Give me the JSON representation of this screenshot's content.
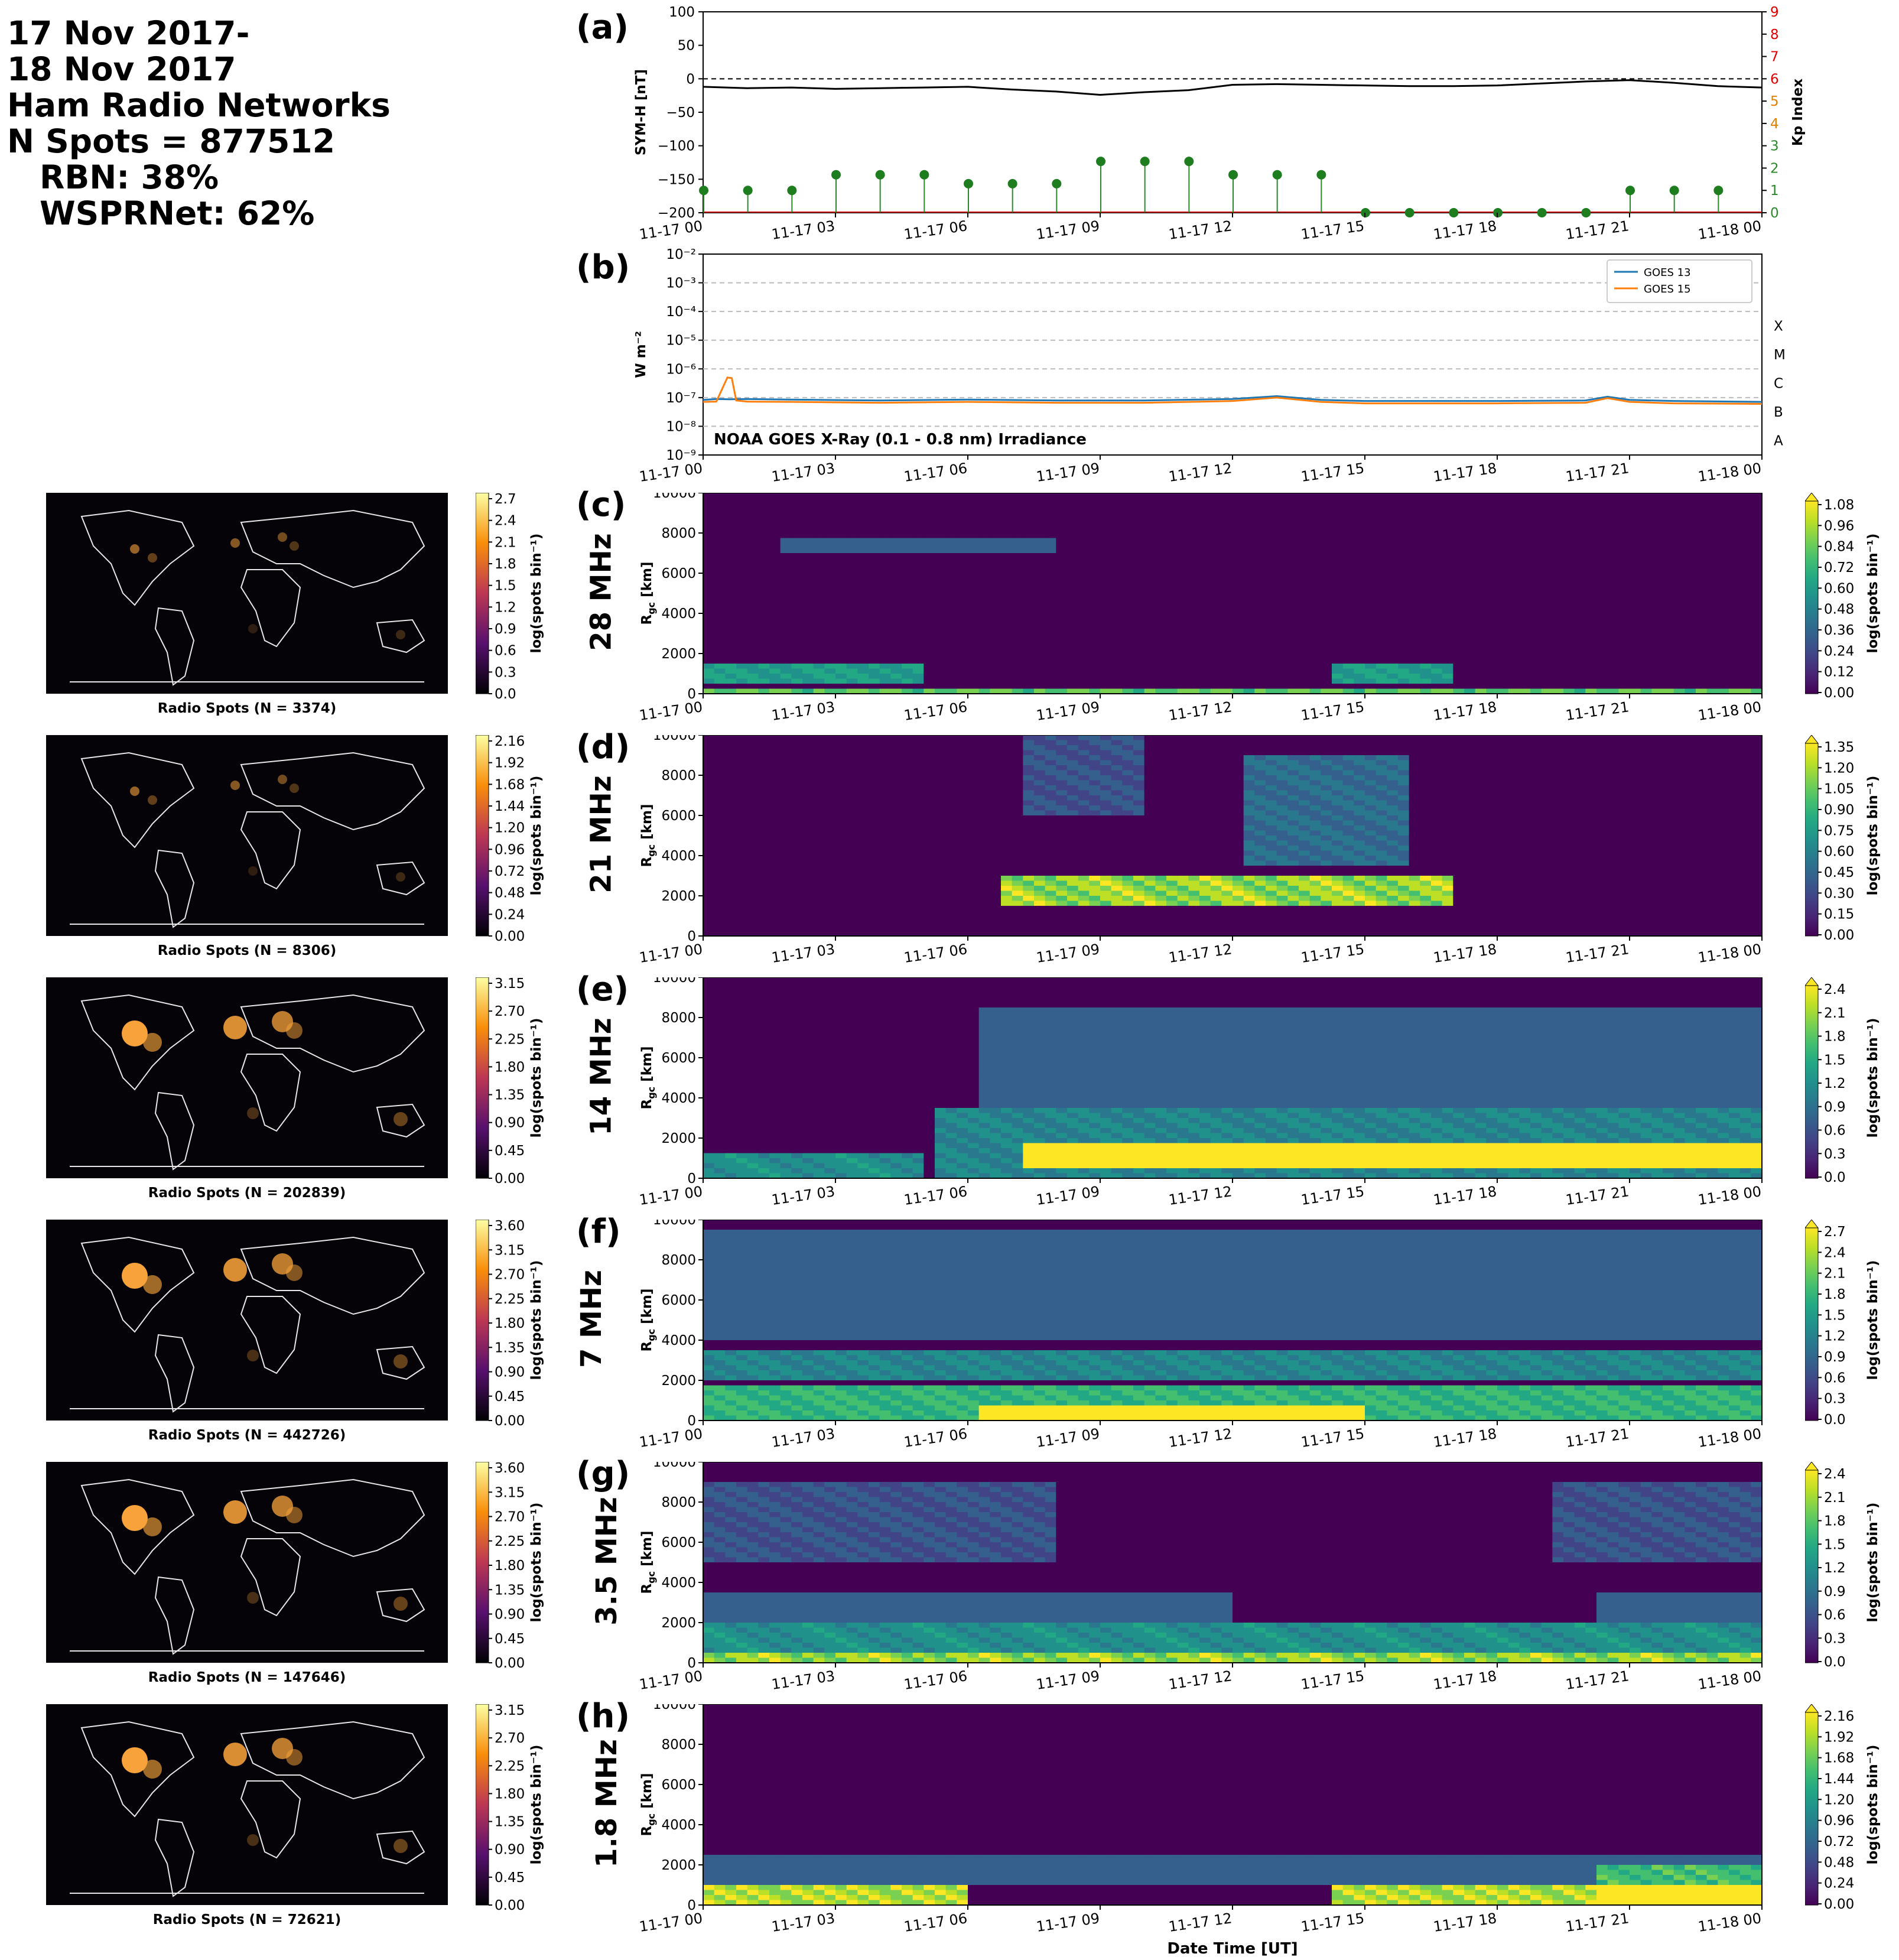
{
  "header": {
    "line1": "17 Nov 2017-",
    "line2": "18 Nov 2017",
    "line3": "Ham Radio Networks",
    "line4": "N Spots = 877512",
    "line5": "RBN: 38%",
    "line6": "WSPRNet: 62%"
  },
  "time_ticks": [
    "11-17 00",
    "11-17 03",
    "11-17 06",
    "11-17 09",
    "11-17 12",
    "11-17 15",
    "11-17 18",
    "11-17 21",
    "11-18 00"
  ],
  "xlabel_bottom": "Date Time [UT]",
  "panel_a": {
    "letter": "(a)",
    "ylabel_left": "SYM-H [nT]",
    "ylabel_right": "Kp Index",
    "left_ticks": [
      "100",
      "50",
      "0",
      "−50",
      "−100",
      "−150",
      "−200"
    ],
    "right_ticks": [
      "9",
      "8",
      "7",
      "6",
      "5",
      "4",
      "3",
      "2",
      "1",
      "0"
    ],
    "right_tick_colors": [
      "#e00000",
      "#e00000",
      "#e00000",
      "#e00000",
      "#e08000",
      "#e08000",
      "#2a8a2a",
      "#2a8a2a",
      "#2a8a2a",
      "#2a8a2a"
    ]
  },
  "panel_b": {
    "letter": "(b)",
    "ylabel": "W m⁻²",
    "y_ticks": [
      "10⁻²",
      "10⁻³",
      "10⁻⁴",
      "10⁻⁵",
      "10⁻⁶",
      "10⁻⁷",
      "10⁻⁸",
      "10⁻⁹"
    ],
    "class_labels": [
      "X",
      "M",
      "C",
      "B",
      "A"
    ],
    "annotation": "NOAA GOES X-Ray (0.1 - 0.8 nm) Irradiance",
    "legend": [
      "GOES 13",
      "GOES 15"
    ]
  },
  "bands": [
    {
      "letter": "(c)",
      "label": "28 MHz",
      "caption": "Radio Spots (N = 3374)",
      "map_ticks": [
        "2.7",
        "2.4",
        "2.1",
        "1.8",
        "1.5",
        "1.2",
        "0.9",
        "0.6",
        "0.3",
        "0.0"
      ],
      "cb_ticks": [
        "1.08",
        "0.96",
        "0.84",
        "0.72",
        "0.60",
        "0.48",
        "0.36",
        "0.24",
        "0.12",
        "0.00"
      ]
    },
    {
      "letter": "(d)",
      "label": "21 MHz",
      "caption": "Radio Spots (N = 8306)",
      "map_ticks": [
        "2.16",
        "1.92",
        "1.68",
        "1.44",
        "1.20",
        "0.96",
        "0.72",
        "0.48",
        "0.24",
        "0.00"
      ],
      "cb_ticks": [
        "1.35",
        "1.20",
        "1.05",
        "0.90",
        "0.75",
        "0.60",
        "0.45",
        "0.30",
        "0.15",
        "0.00"
      ]
    },
    {
      "letter": "(e)",
      "label": "14 MHz",
      "caption": "Radio Spots (N = 202839)",
      "map_ticks": [
        "3.15",
        "2.70",
        "2.25",
        "1.80",
        "1.35",
        "0.90",
        "0.45",
        "0.00"
      ],
      "cb_ticks": [
        "2.4",
        "2.1",
        "1.8",
        "1.5",
        "1.2",
        "0.9",
        "0.6",
        "0.3",
        "0.0"
      ]
    },
    {
      "letter": "(f)",
      "label": "7 MHz",
      "caption": "Radio Spots (N = 442726)",
      "map_ticks": [
        "3.60",
        "3.15",
        "2.70",
        "2.25",
        "1.80",
        "1.35",
        "0.90",
        "0.45",
        "0.00"
      ],
      "cb_ticks": [
        "2.7",
        "2.4",
        "2.1",
        "1.8",
        "1.5",
        "1.2",
        "0.9",
        "0.6",
        "0.3",
        "0.0"
      ]
    },
    {
      "letter": "(g)",
      "label": "3.5 MHz",
      "caption": "Radio Spots (N = 147646)",
      "map_ticks": [
        "3.60",
        "3.15",
        "2.70",
        "2.25",
        "1.80",
        "1.35",
        "0.90",
        "0.45",
        "0.00"
      ],
      "cb_ticks": [
        "2.4",
        "2.1",
        "1.8",
        "1.5",
        "1.2",
        "0.9",
        "0.6",
        "0.3",
        "0.0"
      ]
    },
    {
      "letter": "(h)",
      "label": "1.8 MHz",
      "caption": "Radio Spots (N = 72621)",
      "map_ticks": [
        "3.15",
        "2.70",
        "2.25",
        "1.80",
        "1.35",
        "0.90",
        "0.45",
        "0.00"
      ],
      "cb_ticks": [
        "2.16",
        "1.92",
        "1.68",
        "1.44",
        "1.20",
        "0.96",
        "0.72",
        "0.48",
        "0.24",
        "0.00"
      ]
    }
  ],
  "rgc_ylabel": "R",
  "rgc_ylabel_sub": "gc",
  "rgc_ylabel_unit": " [km]",
  "rgc_ticks": [
    "10000",
    "8000",
    "6000",
    "4000",
    "2000",
    "0"
  ],
  "cb_label": "log(spots bin⁻¹)",
  "chart_data": {
    "type": "line",
    "title": "",
    "x": [
      "11-17 00",
      "11-17 03",
      "11-17 06",
      "11-17 09",
      "11-17 12",
      "11-17 15",
      "11-17 18",
      "11-17 21",
      "11-18 00"
    ],
    "symh": {
      "name": "SYM-H [nT]",
      "ylim": [
        -200,
        100
      ],
      "hours": [
        0,
        1,
        2,
        3,
        4,
        5,
        6,
        7,
        8,
        9,
        10,
        11,
        12,
        13,
        14,
        15,
        16,
        17,
        18,
        19,
        20,
        21,
        22,
        23,
        24
      ],
      "values": [
        -12,
        -14,
        -13,
        -15,
        -14,
        -13,
        -12,
        -16,
        -19,
        -24,
        -20,
        -17,
        -9,
        -8,
        -9,
        -10,
        -11,
        -11,
        -10,
        -7,
        -4,
        -2,
        -6,
        -11,
        -13
      ]
    },
    "kp": {
      "name": "Kp Index",
      "ylim": [
        0,
        9
      ],
      "hours": [
        0,
        1,
        2,
        3,
        4,
        5,
        6,
        7,
        8,
        9,
        10,
        11,
        12,
        13,
        14,
        15,
        16,
        17,
        18,
        19,
        20,
        21,
        22,
        23
      ],
      "values": [
        1.0,
        1.0,
        1.0,
        1.7,
        1.7,
        1.7,
        1.3,
        1.3,
        1.3,
        2.3,
        2.3,
        2.3,
        1.7,
        1.7,
        1.7,
        0,
        0,
        0,
        0,
        0,
        0,
        1.0,
        1.0,
        1.0
      ]
    },
    "goes": {
      "ylim_log10": [
        -9,
        -2
      ],
      "series": [
        {
          "name": "GOES 13",
          "hours": [
            0,
            0.3,
            0.6,
            1,
            2,
            4,
            6,
            8,
            10,
            12,
            13,
            14,
            15,
            16,
            18,
            20,
            20.5,
            21,
            22,
            24
          ],
          "log10": [
            -7.08,
            -7.05,
            -7.06,
            -7.05,
            -7.07,
            -7.1,
            -7.07,
            -7.1,
            -7.1,
            -7.05,
            -6.95,
            -7.08,
            -7.12,
            -7.12,
            -7.12,
            -7.1,
            -6.97,
            -7.08,
            -7.12,
            -7.15
          ]
        },
        {
          "name": "GOES 15",
          "hours": [
            0,
            0.3,
            0.55,
            0.65,
            0.75,
            1,
            2,
            4,
            6,
            8,
            10,
            12,
            13,
            14,
            15,
            16,
            18,
            20,
            20.5,
            21,
            22,
            24
          ],
          "log10": [
            -7.15,
            -7.14,
            -6.3,
            -6.32,
            -7.1,
            -7.14,
            -7.15,
            -7.18,
            -7.15,
            -7.18,
            -7.18,
            -7.12,
            -7.0,
            -7.15,
            -7.2,
            -7.2,
            -7.2,
            -7.18,
            -7.02,
            -7.15,
            -7.2,
            -7.22
          ]
        }
      ]
    },
    "rgc_ylim": [
      0,
      10000
    ]
  }
}
